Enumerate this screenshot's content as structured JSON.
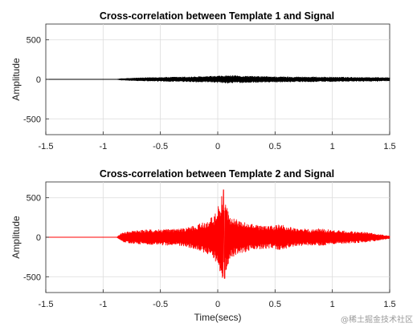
{
  "chart_data": [
    {
      "type": "line",
      "title": "Cross-correlation between Template 1 and Signal",
      "xlabel": "",
      "ylabel": "Amplitude",
      "xlim": [
        -1.5,
        1.5
      ],
      "ylim": [
        -700,
        700
      ],
      "x_ticks": [
        -1.5,
        -1,
        -0.5,
        0,
        0.5,
        1,
        1.5
      ],
      "x_tick_labels": [
        "-1.5",
        "-1",
        "-0.5",
        "0",
        "0.5",
        "1",
        "1.5"
      ],
      "y_ticks": [
        500,
        0,
        -500
      ],
      "y_tick_labels": [
        "500",
        "0",
        "-500"
      ],
      "grid": true,
      "color": "#000000",
      "signal_start": -0.88,
      "envelope": [
        [
          -1.5,
          0
        ],
        [
          -0.88,
          0
        ],
        [
          -0.85,
          8
        ],
        [
          -0.7,
          18
        ],
        [
          -0.5,
          26
        ],
        [
          -0.3,
          30
        ],
        [
          -0.1,
          36
        ],
        [
          0.0,
          42
        ],
        [
          0.1,
          48
        ],
        [
          0.2,
          42
        ],
        [
          0.4,
          36
        ],
        [
          0.6,
          32
        ],
        [
          0.8,
          30
        ],
        [
          1.0,
          28
        ],
        [
          1.2,
          26
        ],
        [
          1.4,
          24
        ],
        [
          1.5,
          22
        ]
      ]
    },
    {
      "type": "line",
      "title": "Cross-correlation between Template 2 and Signal",
      "xlabel": "Time(secs)",
      "ylabel": "Amplitude",
      "xlim": [
        -1.5,
        1.5
      ],
      "ylim": [
        -700,
        700
      ],
      "x_ticks": [
        -1.5,
        -1,
        -0.5,
        0,
        0.5,
        1,
        1.5
      ],
      "x_tick_labels": [
        "-1.5",
        "-1",
        "-0.5",
        "0",
        "0.5",
        "1",
        "1.5"
      ],
      "y_ticks": [
        500,
        0,
        -500
      ],
      "y_tick_labels": [
        "500",
        "0",
        "-500"
      ],
      "grid": true,
      "color": "#ff0000",
      "signal_start": -0.88,
      "peak": {
        "x": 0.05,
        "y": 600,
        "min_y": -520
      },
      "envelope": [
        [
          -1.5,
          0
        ],
        [
          -0.88,
          0
        ],
        [
          -0.85,
          40
        ],
        [
          -0.82,
          60
        ],
        [
          -0.75,
          80
        ],
        [
          -0.6,
          95
        ],
        [
          -0.45,
          100
        ],
        [
          -0.3,
          110
        ],
        [
          -0.2,
          150
        ],
        [
          -0.1,
          200
        ],
        [
          -0.03,
          280
        ],
        [
          0.0,
          380
        ],
        [
          0.03,
          500
        ],
        [
          0.05,
          590
        ],
        [
          0.07,
          430
        ],
        [
          0.1,
          300
        ],
        [
          0.15,
          230
        ],
        [
          0.25,
          180
        ],
        [
          0.35,
          150
        ],
        [
          0.45,
          140
        ],
        [
          0.55,
          160
        ],
        [
          0.65,
          120
        ],
        [
          0.8,
          100
        ],
        [
          0.9,
          110
        ],
        [
          1.0,
          90
        ],
        [
          1.1,
          80
        ],
        [
          1.2,
          70
        ],
        [
          1.3,
          60
        ],
        [
          1.4,
          40
        ],
        [
          1.5,
          15
        ]
      ]
    }
  ],
  "watermark": "@稀土掘金技术社区"
}
